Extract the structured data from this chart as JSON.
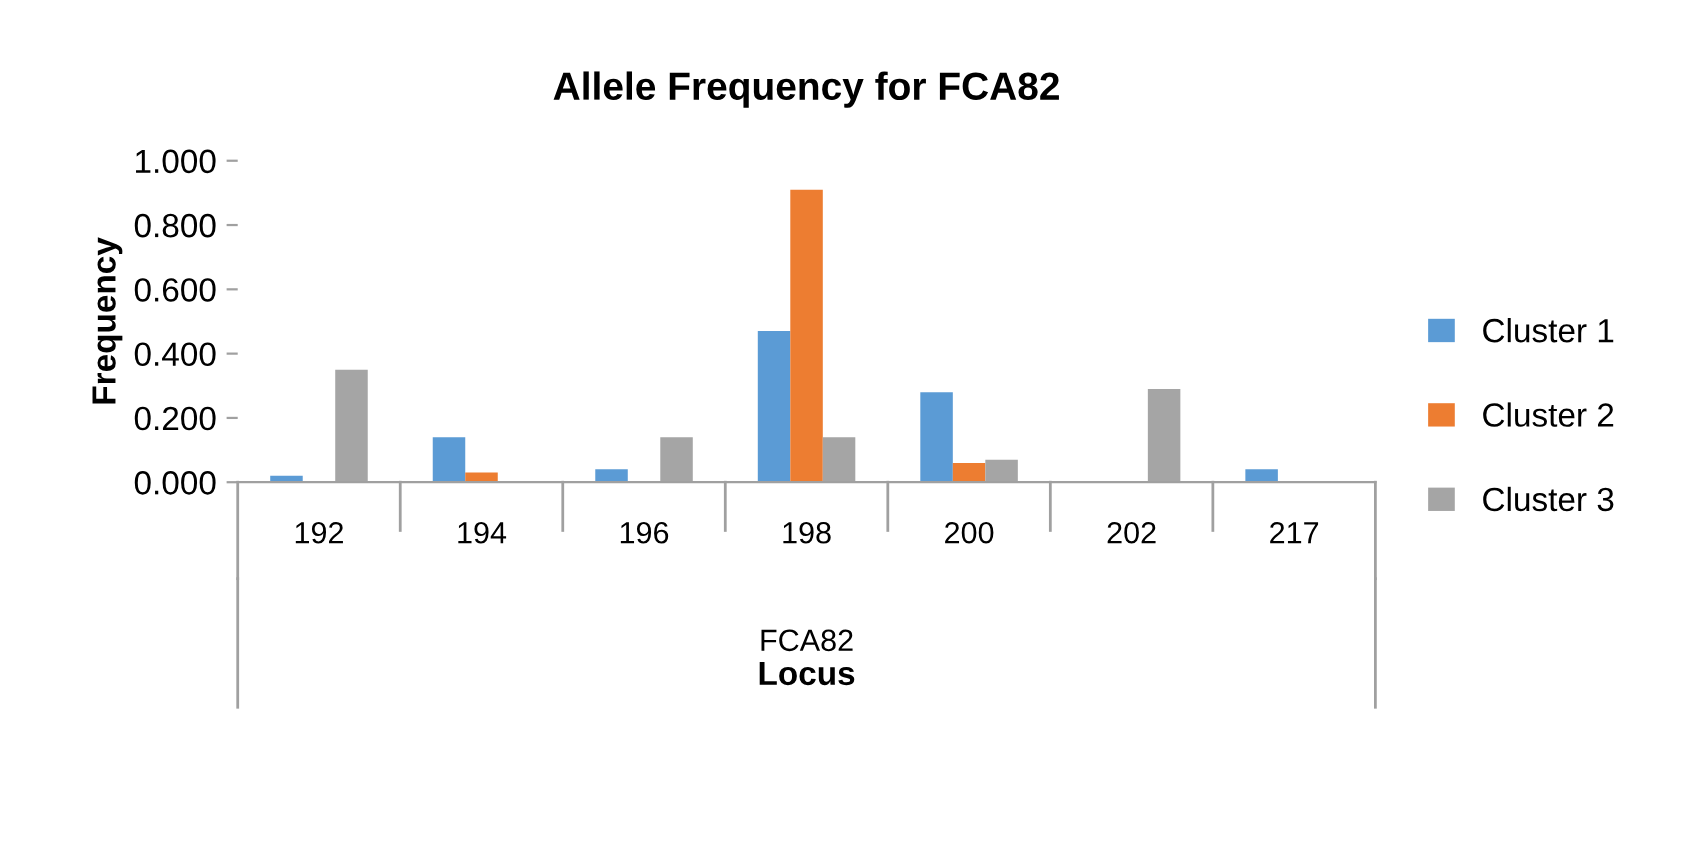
{
  "chart_data": {
    "type": "bar",
    "title": "Allele Frequency for FCA82",
    "xlabel": "Locus",
    "ylabel": "Frequency",
    "categories": [
      "192",
      "194",
      "196",
      "198",
      "200",
      "202",
      "217"
    ],
    "series": [
      {
        "name": "Cluster 1",
        "color": "#5b9bd5",
        "values": [
          0.02,
          0.14,
          0.04,
          0.47,
          0.28,
          0,
          0.04
        ]
      },
      {
        "name": "Cluster 2",
        "color": "#ed7d31",
        "values": [
          0,
          0.03,
          0,
          0.91,
          0.06,
          0,
          0
        ]
      },
      {
        "name": "Cluster 3",
        "color": "#a5a5a5",
        "values": [
          0.35,
          0,
          0.14,
          0.14,
          0.07,
          0.29,
          0
        ]
      }
    ],
    "ylim": [
      0,
      1
    ],
    "yticks": [
      {
        "value": 0,
        "label": "0.000"
      },
      {
        "value": 0.2,
        "label": "0.200"
      },
      {
        "value": 0.4,
        "label": "0.400"
      },
      {
        "value": 0.6,
        "label": "0.600"
      },
      {
        "value": 0.8,
        "label": "0.800"
      },
      {
        "value": 1,
        "label": "1.000"
      }
    ],
    "annotations": [
      "FCA82"
    ],
    "grid": false,
    "legend": "right"
  }
}
